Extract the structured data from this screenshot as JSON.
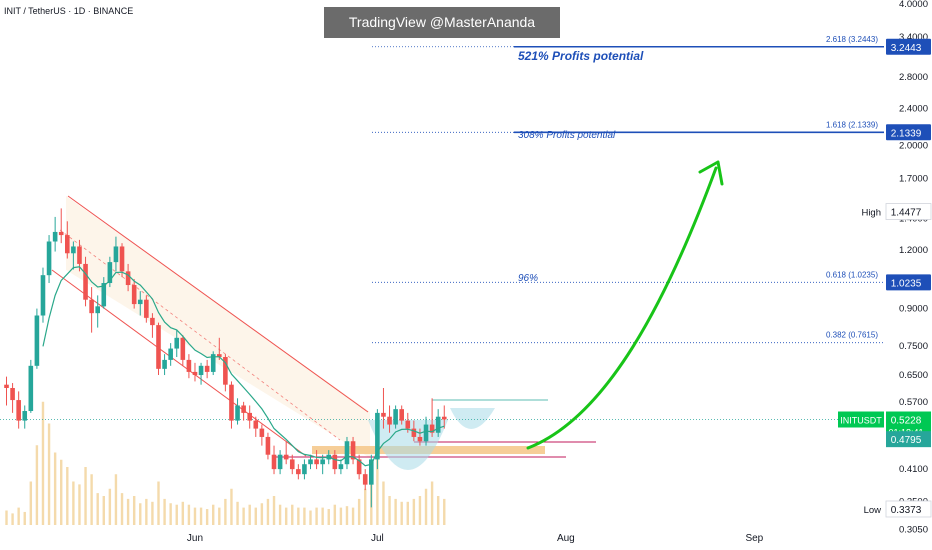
{
  "header": {
    "symbol_title": "INIT / TetherUS · 1D · BINANCE",
    "watermark": "TradingView @MasterAnanda"
  },
  "annotations": {
    "profit_521": "521% Profits potential",
    "profit_308": "308% Profits potential",
    "pct_96": "96%"
  },
  "colors": {
    "up": "#26a69a",
    "down": "#ef5350",
    "fib_blue": "#1e4fb8",
    "arrow_green": "#18c418",
    "ema": "#2aa88a",
    "channel": "#ef5350",
    "support_fill": "#f5c98d",
    "price_badge": "#00c853",
    "volume_bar": "#f2d39c"
  },
  "chart_data": {
    "type": "candlestick",
    "title": "INIT / TetherUS · 1D · BINANCE",
    "scale": "log",
    "ylim": [
      0.28,
      4.0
    ],
    "y_ticks": [
      "4.0000",
      "3.4000",
      "2.8000",
      "2.4000",
      "2.0000",
      "1.7000",
      "1.4000",
      "1.2000",
      "0.9000",
      "0.7500",
      "0.6500",
      "0.5700",
      "0.4100",
      "0.3500",
      "0.3050"
    ],
    "x_ticks": [
      {
        "label": "Jun",
        "day": 31
      },
      {
        "label": "Jul",
        "day": 61
      },
      {
        "label": "Aug",
        "day": 92
      },
      {
        "label": "Sep",
        "day": 123
      }
    ],
    "first_candle": "2025-05-02",
    "candles": [
      [
        0.62,
        0.645,
        0.56,
        0.61
      ],
      [
        0.61,
        0.625,
        0.54,
        0.575
      ],
      [
        0.575,
        0.6,
        0.5,
        0.52
      ],
      [
        0.52,
        0.56,
        0.5,
        0.545
      ],
      [
        0.545,
        0.7,
        0.54,
        0.68
      ],
      [
        0.68,
        0.9,
        0.67,
        0.87
      ],
      [
        0.87,
        1.1,
        0.84,
        1.06
      ],
      [
        1.06,
        1.29,
        1.02,
        1.25
      ],
      [
        1.25,
        1.41,
        1.19,
        1.31
      ],
      [
        1.31,
        1.47,
        1.24,
        1.29
      ],
      [
        1.29,
        1.38,
        1.15,
        1.18
      ],
      [
        1.18,
        1.25,
        1.09,
        1.22
      ],
      [
        1.22,
        1.26,
        1.08,
        1.12
      ],
      [
        1.12,
        1.16,
        0.91,
        0.94
      ],
      [
        0.94,
        1.0,
        0.8,
        0.88
      ],
      [
        0.88,
        0.96,
        0.82,
        0.91
      ],
      [
        0.91,
        1.05,
        0.9,
        1.02
      ],
      [
        1.02,
        1.16,
        1.0,
        1.13
      ],
      [
        1.13,
        1.28,
        1.08,
        1.22
      ],
      [
        1.22,
        1.24,
        1.05,
        1.08
      ],
      [
        1.08,
        1.12,
        0.98,
        1.01
      ],
      [
        1.01,
        1.04,
        0.9,
        0.92
      ],
      [
        0.92,
        0.98,
        0.87,
        0.94
      ],
      [
        0.94,
        0.96,
        0.84,
        0.86
      ],
      [
        0.86,
        0.88,
        0.78,
        0.83
      ],
      [
        0.83,
        0.84,
        0.65,
        0.67
      ],
      [
        0.67,
        0.72,
        0.65,
        0.7
      ],
      [
        0.7,
        0.76,
        0.68,
        0.74
      ],
      [
        0.74,
        0.81,
        0.71,
        0.78
      ],
      [
        0.78,
        0.79,
        0.68,
        0.7
      ],
      [
        0.7,
        0.72,
        0.64,
        0.66
      ],
      [
        0.66,
        0.69,
        0.63,
        0.65
      ],
      [
        0.65,
        0.69,
        0.62,
        0.68
      ],
      [
        0.68,
        0.7,
        0.64,
        0.66
      ],
      [
        0.66,
        0.73,
        0.65,
        0.72
      ],
      [
        0.72,
        0.78,
        0.7,
        0.71
      ],
      [
        0.71,
        0.72,
        0.6,
        0.62
      ],
      [
        0.62,
        0.63,
        0.5,
        0.52
      ],
      [
        0.52,
        0.58,
        0.51,
        0.56
      ],
      [
        0.56,
        0.57,
        0.52,
        0.54
      ],
      [
        0.54,
        0.56,
        0.5,
        0.52
      ],
      [
        0.52,
        0.53,
        0.48,
        0.5
      ],
      [
        0.5,
        0.51,
        0.46,
        0.48
      ],
      [
        0.48,
        0.49,
        0.43,
        0.44
      ],
      [
        0.44,
        0.46,
        0.4,
        0.41
      ],
      [
        0.41,
        0.45,
        0.4,
        0.44
      ],
      [
        0.44,
        0.47,
        0.42,
        0.43
      ],
      [
        0.43,
        0.44,
        0.4,
        0.41
      ],
      [
        0.41,
        0.42,
        0.39,
        0.4
      ],
      [
        0.4,
        0.43,
        0.39,
        0.42
      ],
      [
        0.42,
        0.44,
        0.41,
        0.43
      ],
      [
        0.43,
        0.45,
        0.41,
        0.42
      ],
      [
        0.42,
        0.44,
        0.4,
        0.43
      ],
      [
        0.43,
        0.45,
        0.42,
        0.44
      ],
      [
        0.44,
        0.45,
        0.4,
        0.41
      ],
      [
        0.41,
        0.43,
        0.4,
        0.42
      ],
      [
        0.42,
        0.48,
        0.41,
        0.47
      ],
      [
        0.47,
        0.48,
        0.42,
        0.43
      ],
      [
        0.43,
        0.44,
        0.39,
        0.4
      ],
      [
        0.4,
        0.41,
        0.37,
        0.38
      ],
      [
        0.38,
        0.44,
        0.34,
        0.43
      ],
      [
        0.43,
        0.55,
        0.41,
        0.54
      ],
      [
        0.54,
        0.61,
        0.5,
        0.53
      ],
      [
        0.53,
        0.56,
        0.49,
        0.51
      ],
      [
        0.51,
        0.56,
        0.5,
        0.55
      ],
      [
        0.55,
        0.56,
        0.51,
        0.52
      ],
      [
        0.52,
        0.54,
        0.49,
        0.5
      ],
      [
        0.5,
        0.52,
        0.47,
        0.48
      ],
      [
        0.48,
        0.5,
        0.46,
        0.47
      ],
      [
        0.47,
        0.53,
        0.46,
        0.51
      ],
      [
        0.51,
        0.58,
        0.48,
        0.49
      ],
      [
        0.49,
        0.55,
        0.48,
        0.53
      ],
      [
        0.53,
        0.56,
        0.5,
        0.5228
      ]
    ],
    "volume": [
      0.1,
      0.08,
      0.12,
      0.09,
      0.3,
      0.55,
      0.85,
      0.7,
      0.5,
      0.45,
      0.4,
      0.3,
      0.28,
      0.4,
      0.35,
      0.22,
      0.2,
      0.25,
      0.35,
      0.22,
      0.18,
      0.2,
      0.15,
      0.18,
      0.16,
      0.3,
      0.18,
      0.15,
      0.14,
      0.16,
      0.14,
      0.12,
      0.12,
      0.11,
      0.14,
      0.12,
      0.18,
      0.25,
      0.16,
      0.12,
      0.14,
      0.12,
      0.15,
      0.18,
      0.2,
      0.14,
      0.12,
      0.14,
      0.12,
      0.12,
      0.1,
      0.12,
      0.12,
      0.11,
      0.14,
      0.12,
      0.13,
      0.12,
      0.18,
      0.25,
      0.35,
      0.5,
      0.3,
      0.2,
      0.18,
      0.16,
      0.16,
      0.18,
      0.2,
      0.25,
      0.3,
      0.2,
      0.18
    ],
    "fib_levels": [
      {
        "label": "2.618 (3.2443)",
        "value": 3.2443,
        "badge": "3.2443"
      },
      {
        "label": "1.618 (2.1339)",
        "value": 2.1339,
        "badge": "2.1339"
      },
      {
        "label": "0.618 (1.0235)",
        "value": 1.0235,
        "badge": "1.0235"
      },
      {
        "label": "0.382 (0.7615)",
        "value": 0.7615,
        "badge": ""
      }
    ],
    "high": {
      "label": "High",
      "value": "1.4477",
      "price": 1.4477
    },
    "low": {
      "label": "Low",
      "value": "0.3373",
      "price": 0.3373
    },
    "current": {
      "symbol": "INITUSDT",
      "price": "0.5228",
      "countdown": "01:18:41",
      "value": 0.5228
    },
    "ema_value": {
      "label": "0.4795",
      "value": 0.4795
    }
  }
}
